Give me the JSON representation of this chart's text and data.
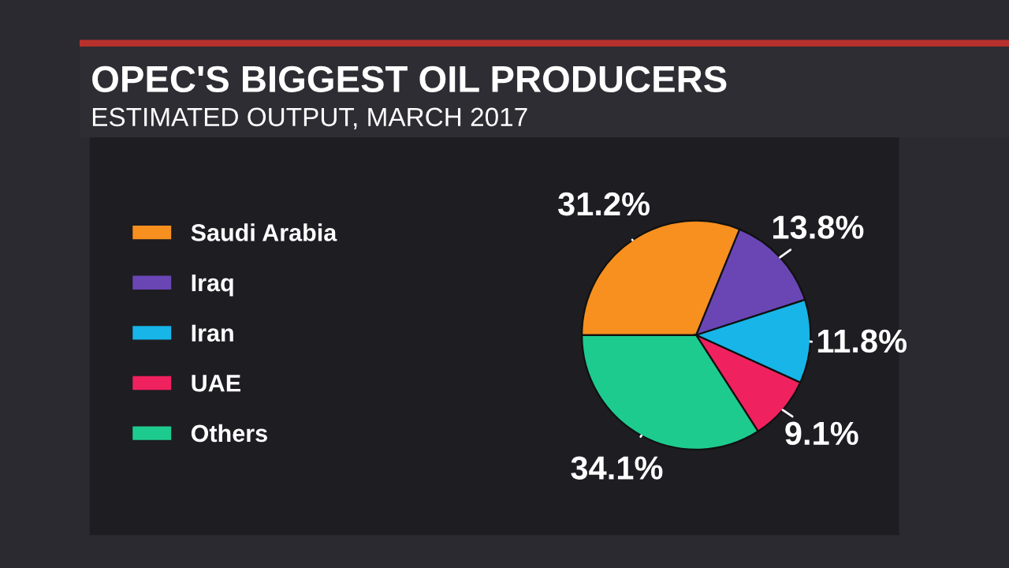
{
  "chart_data": {
    "type": "pie",
    "title": "OPEC'S BIGGEST OIL PRODUCERS",
    "subtitle": "ESTIMATED OUTPUT, MARCH 2017",
    "categories": [
      "Saudi Arabia",
      "Iraq",
      "Iran",
      "UAE",
      "Others"
    ],
    "values": [
      31.2,
      13.8,
      11.8,
      9.1,
      34.1
    ],
    "colors": [
      "#f7901e",
      "#6a46b5",
      "#17b5e8",
      "#f0215f",
      "#1ecb8f"
    ],
    "value_labels": [
      "31.2%",
      "13.8%",
      "11.8%",
      "9.1%",
      "34.1%"
    ],
    "legend": "left"
  }
}
